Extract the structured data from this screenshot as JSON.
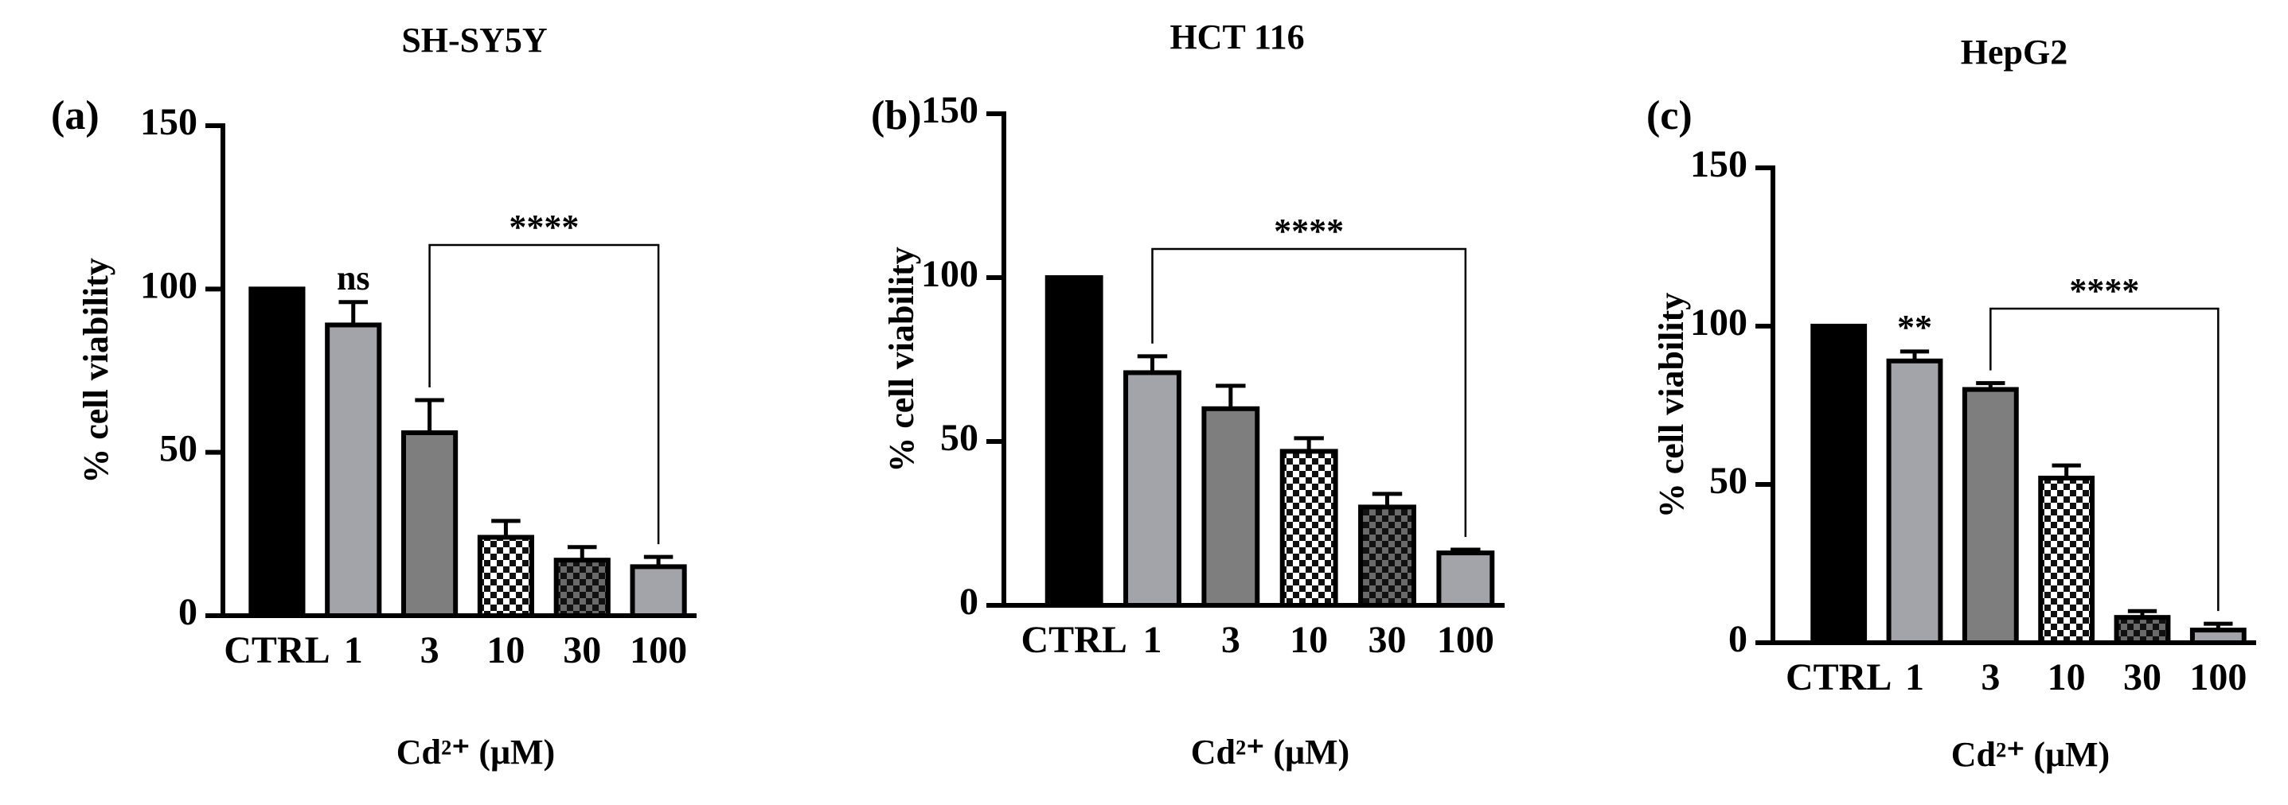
{
  "chart_data": [
    {
      "type": "bar",
      "title": "SH-SY5Y",
      "panel_label": "(a)",
      "y_label": "% cell viability",
      "x_label": "Cd²⁺ (μM)",
      "categories": [
        "CTRL",
        "1",
        "3",
        "10",
        "30",
        "100"
      ],
      "values": [
        100,
        89,
        56,
        24,
        17,
        15
      ],
      "errors": [
        null,
        7,
        10,
        5,
        4,
        3
      ],
      "bar_fills": [
        "#000000",
        "#a3a3aa",
        "#7e7e7e",
        "checker-light",
        "checker-dark",
        "#a3a3aa"
      ],
      "ylim": [
        0,
        150
      ],
      "yticks": [
        0,
        50,
        100,
        150
      ],
      "annotations": [
        {
          "text": "ns",
          "category": "1"
        }
      ],
      "bracket": {
        "label": "****",
        "from": "3",
        "to": "100"
      }
    },
    {
      "type": "bar",
      "title": "HCT 116",
      "panel_label": "(b)",
      "y_label": "% cell viability",
      "x_label": "Cd²⁺ (μM)",
      "categories": [
        "CTRL",
        "1",
        "3",
        "10",
        "30",
        "100"
      ],
      "values": [
        100,
        71,
        60,
        47,
        30,
        16
      ],
      "errors": [
        null,
        5,
        7,
        4,
        4,
        1
      ],
      "bar_fills": [
        "#000000",
        "#a3a3aa",
        "#7e7e7e",
        "checker-light",
        "checker-dark",
        "#a3a3aa"
      ],
      "ylim": [
        0,
        150
      ],
      "yticks": [
        0,
        50,
        100,
        150
      ],
      "annotations": [],
      "bracket": {
        "label": "****",
        "from": "1",
        "to": "100"
      }
    },
    {
      "type": "bar",
      "title": "HepG2",
      "panel_label": "(c)",
      "y_label": "% cell viability",
      "x_label": "Cd²⁺ (μM)",
      "categories": [
        "CTRL",
        "1",
        "3",
        "10",
        "30",
        "100"
      ],
      "values": [
        100,
        89,
        80,
        52,
        8,
        4
      ],
      "errors": [
        null,
        3,
        2,
        4,
        2,
        2
      ],
      "bar_fills": [
        "#000000",
        "#a3a3aa",
        "#7e7e7e",
        "checker-light",
        "checker-dark",
        "#a3a3aa"
      ],
      "ylim": [
        0,
        150
      ],
      "yticks": [
        0,
        50,
        100,
        150
      ],
      "annotations": [
        {
          "text": "**",
          "category": "1"
        }
      ],
      "bracket": {
        "label": "****",
        "from": "3",
        "to": "100"
      }
    }
  ]
}
